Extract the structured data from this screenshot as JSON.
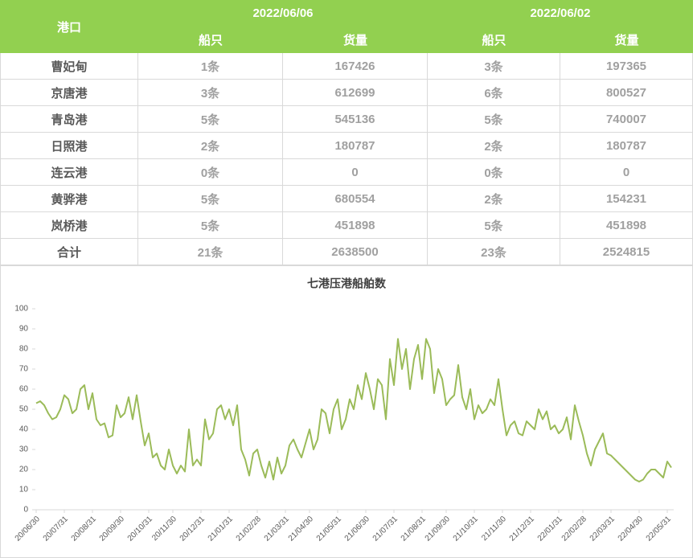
{
  "table": {
    "port_header": "港口",
    "dates": [
      "2022/06/06",
      "2022/06/02"
    ],
    "columns": [
      "船只",
      "货量",
      "船只",
      "货量"
    ],
    "rows": [
      [
        "曹妃甸",
        "1条",
        "167426",
        "3条",
        "197365"
      ],
      [
        "京唐港",
        "3条",
        "612699",
        "6条",
        "800527"
      ],
      [
        "青岛港",
        "5条",
        "545136",
        "5条",
        "740007"
      ],
      [
        "日照港",
        "2条",
        "180787",
        "2条",
        "180787"
      ],
      [
        "连云港",
        "0条",
        "0",
        "0条",
        "0"
      ],
      [
        "黄骅港",
        "5条",
        "680554",
        "2条",
        "154231"
      ],
      [
        "岚桥港",
        "5条",
        "451898",
        "5条",
        "451898"
      ],
      [
        "合计",
        "21条",
        "2638500",
        "23条",
        "2524815"
      ]
    ]
  },
  "chart_data": {
    "type": "line",
    "title": "七港压港船舶数",
    "color": "#9bbb59",
    "ylim": [
      0,
      100
    ],
    "yticks": [
      0,
      10,
      20,
      30,
      40,
      50,
      60,
      70,
      80,
      90,
      100
    ],
    "categories": [
      "20/06/30",
      null,
      null,
      null,
      null,
      null,
      null,
      "20/07/31",
      null,
      null,
      null,
      null,
      null,
      null,
      "20/08/31",
      null,
      null,
      null,
      null,
      null,
      null,
      "20/09/30",
      null,
      null,
      null,
      null,
      null,
      null,
      "20/10/31",
      null,
      null,
      null,
      null,
      null,
      "20/11/30",
      null,
      null,
      null,
      null,
      null,
      null,
      "20/12/31",
      null,
      null,
      null,
      null,
      null,
      null,
      "21/01/31",
      null,
      null,
      null,
      null,
      null,
      null,
      "21/02/28",
      null,
      null,
      null,
      null,
      null,
      null,
      "21/03/31",
      null,
      null,
      null,
      null,
      null,
      "21/04/30",
      null,
      null,
      null,
      null,
      null,
      null,
      "21/05/31",
      null,
      null,
      null,
      null,
      null,
      null,
      "21/06/30",
      null,
      null,
      null,
      null,
      null,
      null,
      "21/07/31",
      null,
      null,
      null,
      null,
      null,
      null,
      "21/08/31",
      null,
      null,
      null,
      null,
      null,
      "21/09/30",
      null,
      null,
      null,
      null,
      null,
      null,
      "21/10/31",
      null,
      null,
      null,
      null,
      null,
      null,
      "21/11/30",
      null,
      null,
      null,
      null,
      null,
      null,
      "21/12/31",
      null,
      null,
      null,
      null,
      null,
      null,
      "22/01/31",
      null,
      null,
      null,
      null,
      null,
      "22/02/28",
      null,
      null,
      null,
      null,
      null,
      null,
      "22/03/31",
      null,
      null,
      null,
      null,
      null,
      null,
      "22/04/30",
      null,
      null,
      null,
      null,
      null,
      null,
      "22/05/31",
      null
    ],
    "values": [
      53,
      54,
      52,
      48,
      45,
      46,
      50,
      57,
      55,
      48,
      50,
      60,
      62,
      50,
      58,
      45,
      42,
      43,
      36,
      37,
      52,
      46,
      48,
      56,
      45,
      57,
      44,
      32,
      38,
      26,
      28,
      22,
      20,
      30,
      22,
      18,
      22,
      19,
      40,
      22,
      25,
      22,
      45,
      35,
      38,
      50,
      52,
      45,
      50,
      42,
      52,
      30,
      25,
      17,
      28,
      30,
      22,
      16,
      24,
      15,
      26,
      18,
      22,
      32,
      35,
      30,
      26,
      33,
      40,
      30,
      35,
      50,
      48,
      38,
      50,
      55,
      40,
      45,
      55,
      50,
      62,
      55,
      68,
      60,
      50,
      65,
      62,
      45,
      75,
      62,
      85,
      70,
      80,
      60,
      75,
      82,
      65,
      85,
      80,
      58,
      70,
      65,
      52,
      55,
      57,
      72,
      56,
      50,
      60,
      45,
      52,
      48,
      50,
      55,
      52,
      65,
      50,
      37,
      42,
      44,
      38,
      37,
      44,
      42,
      40,
      50,
      45,
      49,
      40,
      42,
      38,
      40,
      46,
      35,
      52,
      44,
      37,
      28,
      22,
      30,
      34,
      38,
      28,
      27,
      25,
      23,
      21,
      19,
      17,
      15,
      14,
      15,
      18,
      20,
      20,
      18,
      16,
      24,
      21
    ]
  }
}
